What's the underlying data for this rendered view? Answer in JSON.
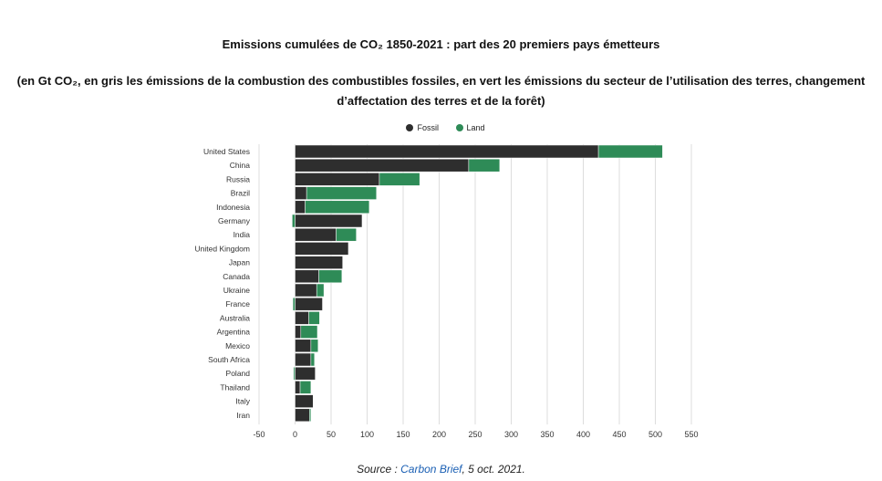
{
  "title_main": "Emissions cumulées de CO₂ 1850-2021 : part des 20 premiers pays émetteurs",
  "title_sub": "(en Gt CO₂, en gris les émissions de la combustion des combustibles fossiles, en vert les émissions du secteur de l’utilisation des terres, changement d’affectation des terres et de la forêt)",
  "source": {
    "prefix": "Source : ",
    "link": "Carbon Brief",
    "suffix": ", 5 oct. 2021."
  },
  "colors": {
    "fossil": "#2e2e2e",
    "land": "#2e8b57",
    "grid": "#dddddd"
  },
  "chart_data": {
    "type": "bar",
    "orientation": "horizontal",
    "stacked": true,
    "categories": [
      "United States",
      "China",
      "Russia",
      "Brazil",
      "Indonesia",
      "Germany",
      "India",
      "United Kingdom",
      "Japan",
      "Canada",
      "Ukraine",
      "France",
      "Australia",
      "Argentina",
      "Mexico",
      "South Africa",
      "Poland",
      "Thailand",
      "Italy",
      "Iran"
    ],
    "series": [
      {
        "name": "Fossil",
        "values": [
          421,
          241,
          117,
          16,
          14,
          93,
          57,
          74,
          66,
          33,
          30,
          38,
          19,
          8,
          22,
          22,
          28,
          7,
          25,
          20
        ]
      },
      {
        "name": "Land",
        "values": [
          89,
          43,
          56,
          97,
          89,
          -4,
          28,
          0,
          0,
          32,
          10,
          -3,
          15,
          23,
          10,
          5,
          -2,
          15,
          0,
          2
        ]
      }
    ],
    "xlim": [
      -50,
      550
    ],
    "xticks": [
      "-50",
      "0",
      "50",
      "100",
      "150",
      "200",
      "250",
      "300",
      "350",
      "400",
      "450",
      "500",
      "550"
    ],
    "grid": true,
    "legend": "top-center"
  }
}
